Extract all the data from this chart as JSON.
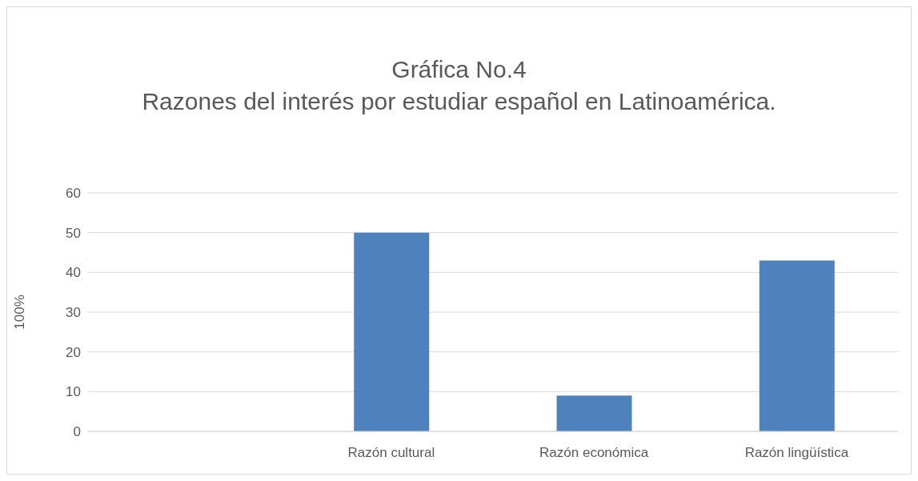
{
  "chart_data": {
    "type": "bar",
    "title": "Gráfica  No.4",
    "subtitle": "Razones del interés por estudiar español en Latinoamérica.",
    "ylabel": "100%",
    "categories": [
      null,
      "Razón cultural",
      "Razón económica",
      "Razón lingüística"
    ],
    "values": [
      null,
      50,
      9,
      43
    ],
    "color": "#4f81bd",
    "ylim": [
      0,
      60
    ],
    "yticks": [
      0,
      10,
      20,
      30,
      40,
      50,
      60
    ],
    "grid": "y",
    "legend": false
  }
}
